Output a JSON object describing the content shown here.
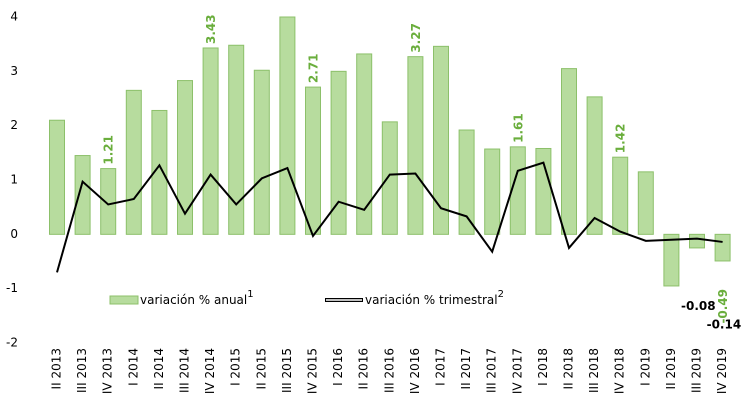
{
  "chart_data": {
    "type": "bar-line",
    "categories": [
      "II 2013",
      "III 2013",
      "IV 2013",
      "I 2014",
      "II 2014",
      "III 2014",
      "IV 2014",
      "I 2015",
      "II 2015",
      "III 2015",
      "IV 2015",
      "I 2016",
      "II 2016",
      "III 2016",
      "IV 2016",
      "I 2017",
      "II 2017",
      "III 2017",
      "IV 2017",
      "I 2018",
      "II 2018",
      "III 2018",
      "IV 2018",
      "I 2019",
      "II 2019",
      "III 2019",
      "IV 2019"
    ],
    "series": [
      {
        "name": "variación % anual",
        "note": "1",
        "kind": "bar",
        "color": "#b7dc9e",
        "edge": "#8cc06a",
        "label_color": "#6aae3c",
        "values": [
          2.1,
          1.45,
          1.21,
          2.65,
          2.28,
          2.83,
          3.43,
          3.48,
          3.02,
          4.0,
          2.71,
          3.0,
          3.32,
          2.07,
          3.27,
          3.46,
          1.92,
          1.57,
          1.61,
          1.58,
          3.05,
          2.53,
          1.42,
          1.15,
          -0.95,
          -0.25,
          -0.49
        ],
        "value_labels": [
          null,
          null,
          "1.21",
          null,
          null,
          null,
          "3.43",
          null,
          null,
          null,
          "2.71",
          null,
          null,
          null,
          "3.27",
          null,
          null,
          null,
          "1.61",
          null,
          null,
          null,
          "1.42",
          null,
          null,
          null,
          "-0.49"
        ]
      },
      {
        "name": "variación % trimestral",
        "note": "2",
        "kind": "line",
        "color": "#000000",
        "label_color": "#000000",
        "values": [
          -0.7,
          0.97,
          0.55,
          0.65,
          1.27,
          0.38,
          1.1,
          0.55,
          1.03,
          1.22,
          -0.03,
          0.6,
          0.45,
          1.1,
          1.12,
          0.48,
          0.33,
          -0.32,
          1.17,
          1.32,
          -0.25,
          0.3,
          0.05,
          -0.12,
          -0.1,
          -0.08,
          -0.14
        ],
        "value_labels": [
          null,
          null,
          null,
          null,
          null,
          null,
          null,
          null,
          null,
          null,
          null,
          null,
          null,
          null,
          null,
          null,
          null,
          null,
          null,
          null,
          null,
          null,
          null,
          null,
          null,
          "-0.08",
          "-0.14"
        ]
      }
    ],
    "ylim": [
      -2,
      4
    ],
    "yticks": [
      -2,
      -1,
      0,
      1,
      2,
      3,
      4
    ]
  }
}
